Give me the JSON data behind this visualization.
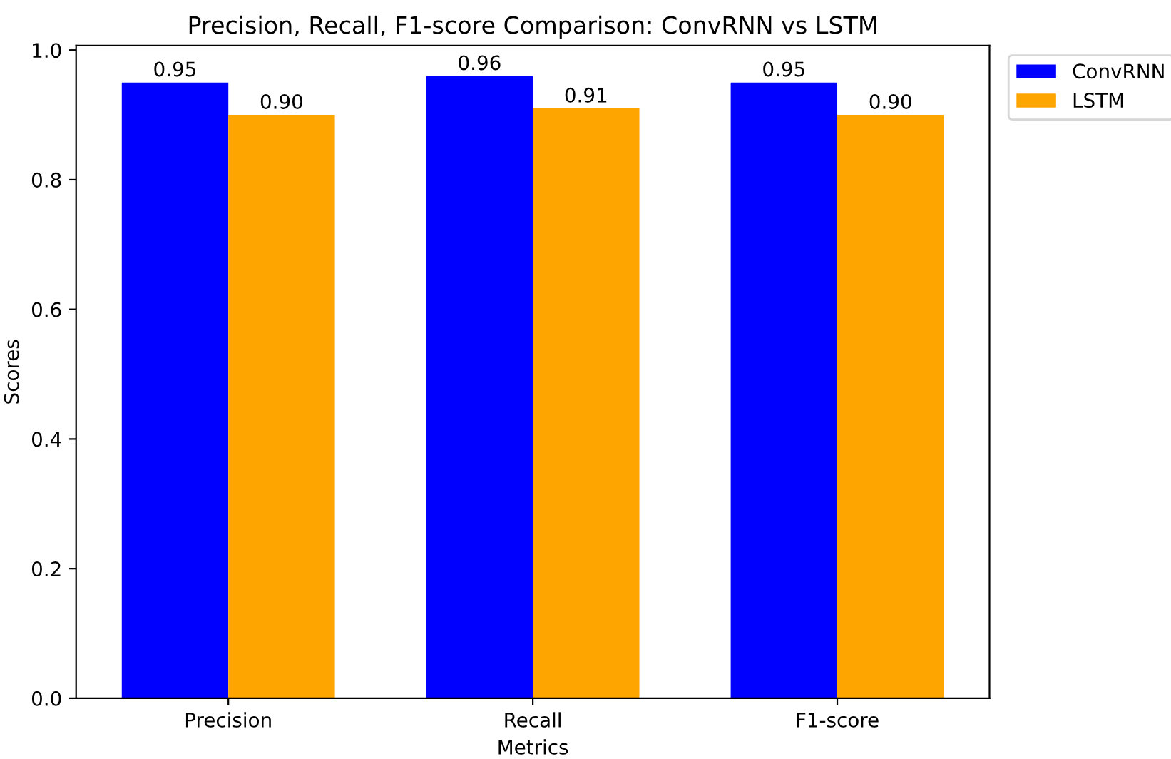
{
  "chart_data": {
    "type": "bar",
    "title": "Precision, Recall, F1-score Comparison: ConvRNN vs LSTM",
    "xlabel": "Metrics",
    "ylabel": "Scores",
    "categories": [
      "Precision",
      "Recall",
      "F1-score"
    ],
    "series": [
      {
        "name": "ConvRNN",
        "color": "#0000ff",
        "values": [
          0.95,
          0.96,
          0.95
        ],
        "value_labels": [
          "0.95",
          "0.96",
          "0.95"
        ]
      },
      {
        "name": "LSTM",
        "color": "#ffa500",
        "values": [
          0.9,
          0.91,
          0.9
        ],
        "value_labels": [
          "0.90",
          "0.91",
          "0.90"
        ]
      }
    ],
    "ylim": [
      0,
      1.007
    ],
    "yticks": [
      {
        "value": 0,
        "label": "0.0"
      },
      0.2,
      0.4,
      0.6,
      0.8,
      {
        "value": 1,
        "label": "1.0"
      }
    ],
    "grid": false,
    "legend": "top right"
  }
}
